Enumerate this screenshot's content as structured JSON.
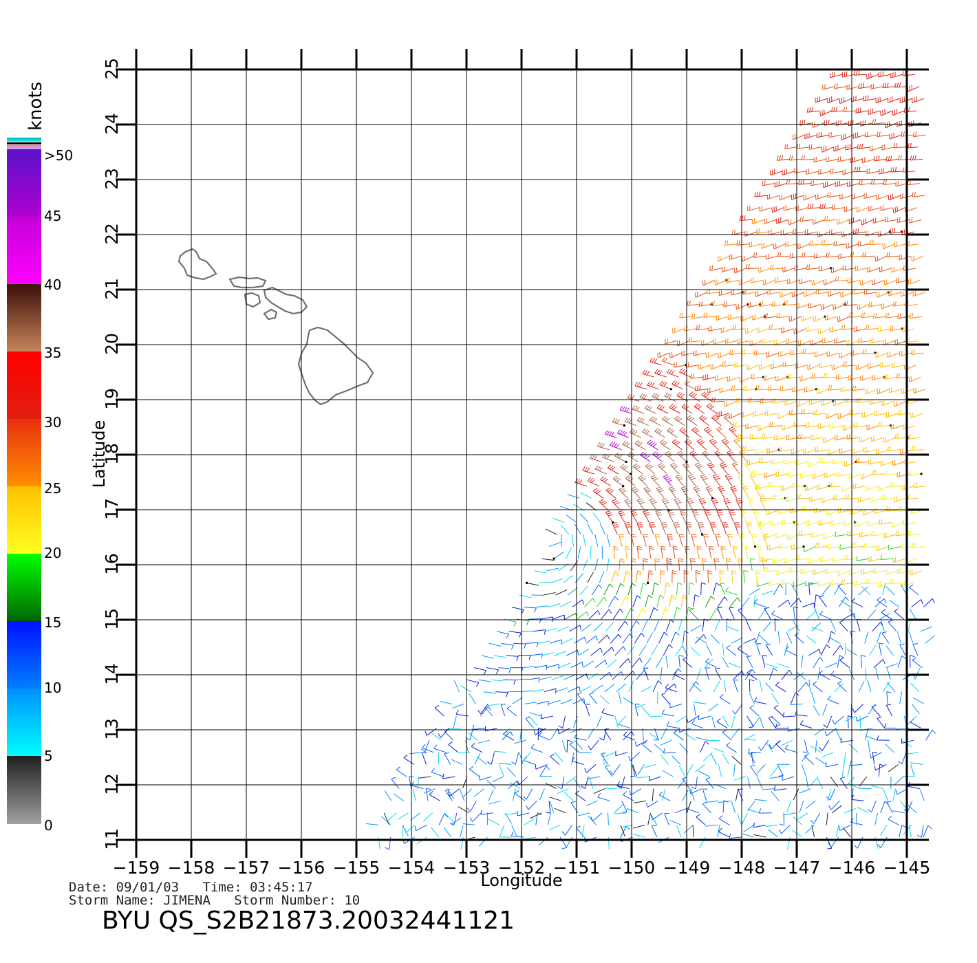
{
  "colorbar": {
    "unit": "knots",
    "labels": [
      ">50",
      "45",
      "40",
      "35",
      "30",
      "25",
      "20",
      "15",
      "10",
      "5",
      "0"
    ],
    "bands": [
      {
        "from": 50,
        "to": 45,
        "top": "#5a12c8",
        "bottom": "#b000d0"
      },
      {
        "from": 45,
        "to": 40,
        "top": "#c400d8",
        "bottom": "#ff00ff"
      },
      {
        "from": 40,
        "to": 35,
        "top": "#3c0f0a",
        "bottom": "#c8865a"
      },
      {
        "from": 35,
        "to": 30,
        "top": "#ff0000",
        "bottom": "#e02010"
      },
      {
        "from": 30,
        "to": 25,
        "top": "#e83010",
        "bottom": "#ff9000"
      },
      {
        "from": 25,
        "to": 20,
        "top": "#ffc000",
        "bottom": "#ffff20"
      },
      {
        "from": 20,
        "to": 15,
        "top": "#00ff00",
        "bottom": "#006400"
      },
      {
        "from": 15,
        "to": 10,
        "top": "#0010ff",
        "bottom": "#0080ff"
      },
      {
        "from": 10,
        "to": 5,
        "top": "#0090ff",
        "bottom": "#00ffff"
      },
      {
        "from": 5,
        "to": 0,
        "top": "#202020",
        "bottom": "#a0a0a0"
      }
    ]
  },
  "axes": {
    "xlabel": "Longitude",
    "ylabel": "Latitude",
    "lon_ticks": [
      "−159",
      "−158",
      "−157",
      "−156",
      "−155",
      "−154",
      "−153",
      "−152",
      "−151",
      "−150",
      "−149",
      "−148",
      "−147",
      "−146",
      "−145"
    ],
    "lat_ticks": [
      "11",
      "12",
      "13",
      "14",
      "15",
      "16",
      "17",
      "18",
      "19",
      "20",
      "21",
      "22",
      "23",
      "24",
      "25"
    ],
    "lon_range": [
      -159,
      -144.6
    ],
    "lat_range": [
      11,
      25
    ]
  },
  "wind_field": {
    "swath_lon_range": [
      -154.8,
      -144.6
    ],
    "storm_center": {
      "lon": -151.5,
      "lat": 16.4
    },
    "max_speed_knots": 45
  },
  "info": {
    "date_line": "Date: 09/01/03   Time: 03:45:17",
    "storm_line": "Storm Name: JIMENA   Storm Number: 10",
    "product": "BYU QS_S2B21873.20032441121"
  }
}
